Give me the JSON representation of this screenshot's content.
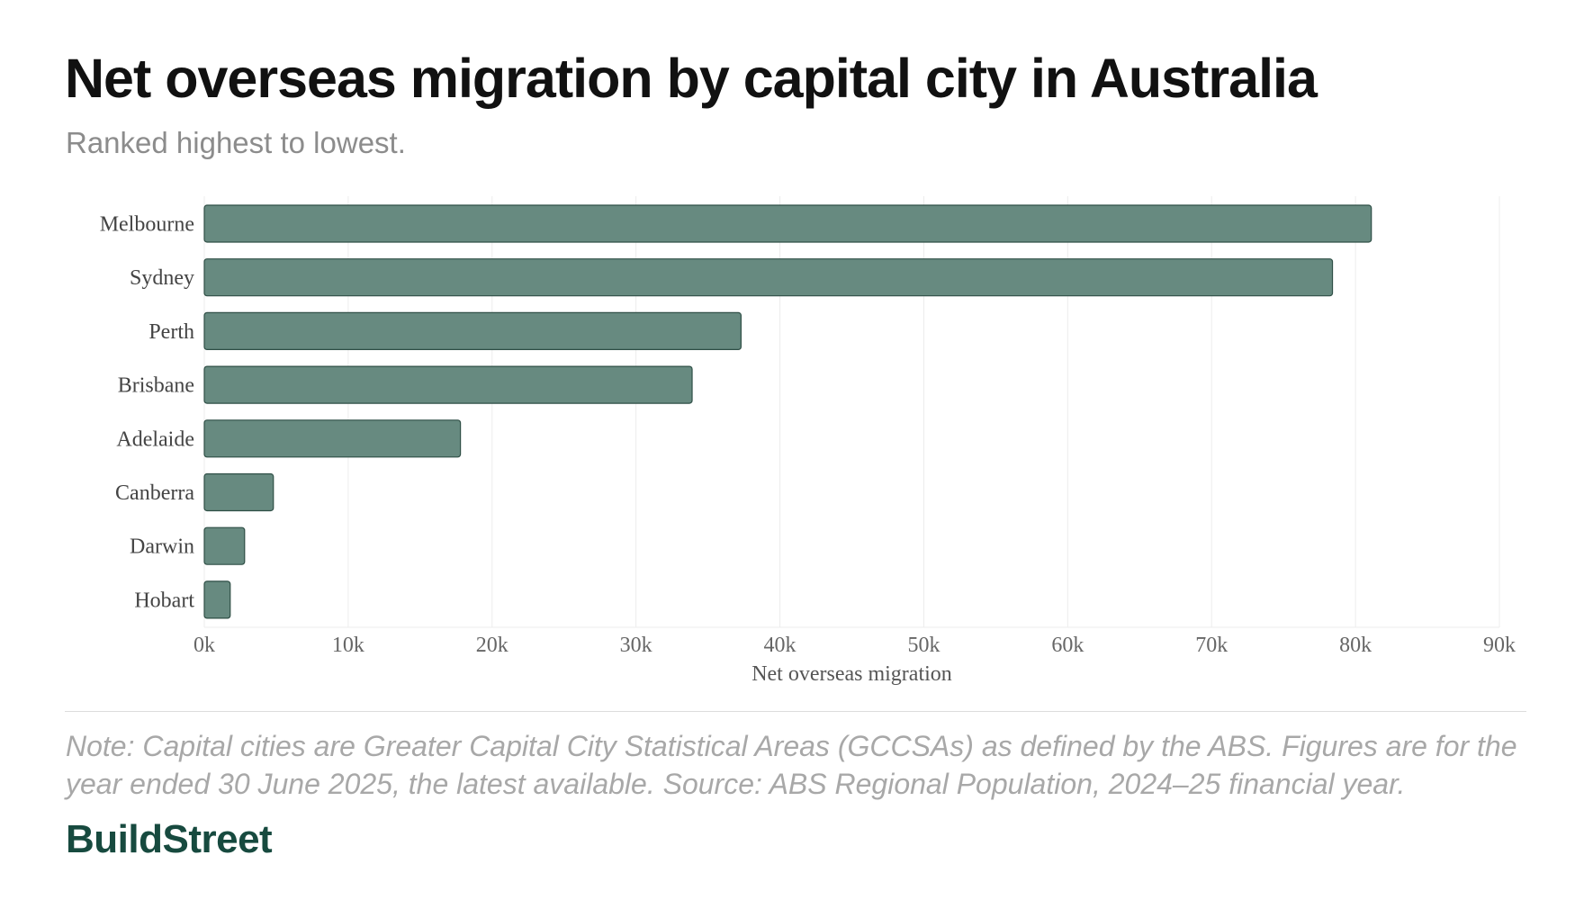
{
  "header": {
    "title": "Net overseas migration by capital city in Australia",
    "subtitle": "Ranked highest to lowest."
  },
  "footer": {
    "note": "Note: Capital cities are Greater Capital City Statistical Areas (GCCSAs) as defined by the ABS. Figures are for the year ended 30 June 2025, the latest available. Source: ABS Regional Population, 2024–25 financial year.",
    "brand": "BuildStreet"
  },
  "colors": {
    "bar_fill": "#678a80",
    "bar_stroke": "#2f4f46",
    "grid": "#ececec",
    "brand": "#174a3f"
  },
  "chart_data": {
    "type": "bar",
    "orientation": "horizontal",
    "categories": [
      "Melbourne",
      "Sydney",
      "Perth",
      "Brisbane",
      "Adelaide",
      "Canberra",
      "Darwin",
      "Hobart"
    ],
    "values": [
      81100,
      78400,
      37300,
      33900,
      17800,
      4800,
      2800,
      1800
    ],
    "xlabel": "Net overseas migration",
    "ylabel": "",
    "xlim": [
      0,
      90000
    ],
    "ticks": [
      0,
      10000,
      20000,
      30000,
      40000,
      50000,
      60000,
      70000,
      80000,
      90000
    ],
    "tick_labels": [
      "0k",
      "10k",
      "20k",
      "30k",
      "40k",
      "50k",
      "60k",
      "70k",
      "80k",
      "90k"
    ],
    "grid": true,
    "legend": "none"
  }
}
